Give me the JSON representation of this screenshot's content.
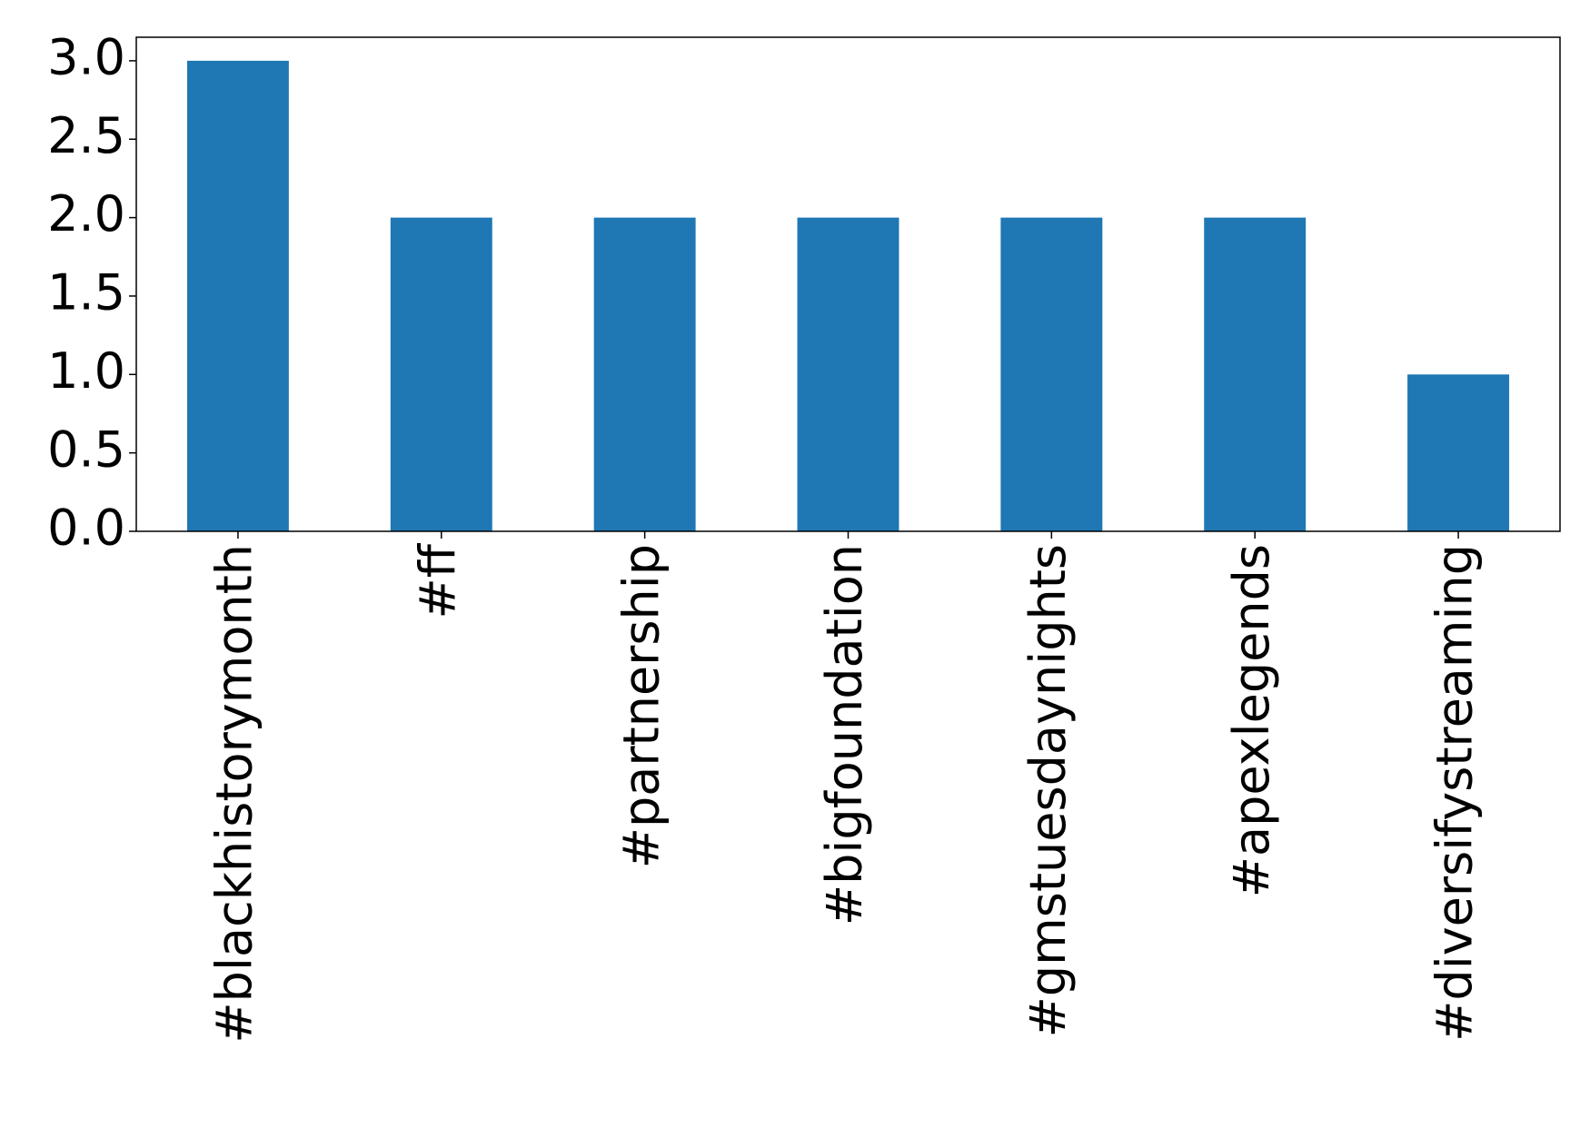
{
  "chart_data": {
    "type": "bar",
    "categories": [
      "#blackhistorymonth",
      "#ff",
      "#partnership",
      "#bigfoundation",
      "#gmstuesdaynights",
      "#apexlegends",
      "#diversifystreaming"
    ],
    "values": [
      3,
      2,
      2,
      2,
      2,
      2,
      1
    ],
    "color": "#1f77b4",
    "ylim": [
      0,
      3.15
    ],
    "yticks": [
      {
        "value": 0,
        "label": "0.0"
      },
      {
        "value": 0.5,
        "label": "0.5"
      },
      {
        "value": 1,
        "label": "1.0"
      },
      {
        "value": 1.5,
        "label": "1.5"
      },
      {
        "value": 2,
        "label": "2.0"
      },
      {
        "value": 2.5,
        "label": "2.5"
      },
      {
        "value": 3,
        "label": "3.0"
      }
    ],
    "grid": false
  }
}
